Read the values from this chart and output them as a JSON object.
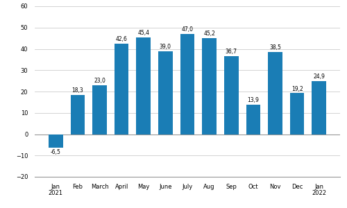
{
  "categories": [
    "Jan\n2021",
    "Feb",
    "March",
    "April",
    "May",
    "June",
    "July",
    "Aug",
    "Sep",
    "Oct",
    "Nov",
    "Dec",
    "Jan\n2022"
  ],
  "values": [
    -6.5,
    18.3,
    23.0,
    42.6,
    45.4,
    39.0,
    47.0,
    45.2,
    36.7,
    13.9,
    38.5,
    19.2,
    24.9
  ],
  "labels": [
    "-6,5",
    "18,3",
    "23,0",
    "42,6",
    "45,4",
    "39,0",
    "47,0",
    "45,2",
    "36,7",
    "13,9",
    "38,5",
    "19,2",
    "24,9"
  ],
  "bar_color": "#1a7db5",
  "ylim": [
    -20,
    60
  ],
  "yticks": [
    -20,
    -10,
    0,
    10,
    20,
    30,
    40,
    50,
    60
  ],
  "background_color": "#ffffff",
  "grid_color": "#cccccc",
  "label_fontsize": 5.5,
  "tick_fontsize": 6.0
}
